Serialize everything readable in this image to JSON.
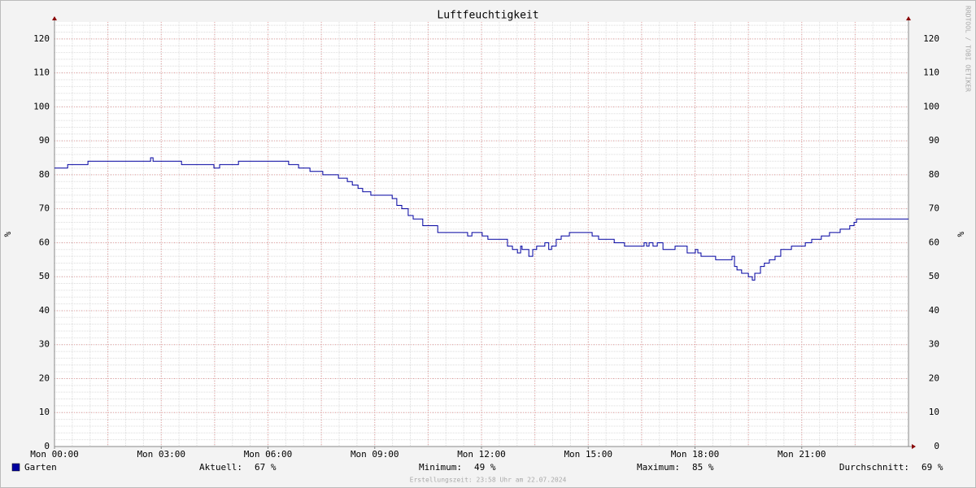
{
  "chart_data": {
    "type": "line",
    "step": "after",
    "title": "Luftfeuchtigkeit",
    "y_label": "%",
    "y2_label": "%",
    "watermark": "RRDTOOL / TOBI OETIKER",
    "x": [
      0,
      0.37,
      0.94,
      2.7,
      2.77,
      3.57,
      4.48,
      4.64,
      5.17,
      6.58,
      6.86,
      7.18,
      7.54,
      7.98,
      8.23,
      8.37,
      8.53,
      8.66,
      8.89,
      9.49,
      9.62,
      9.76,
      9.94,
      10.08,
      10.35,
      10.77,
      11.61,
      11.73,
      12.02,
      12.18,
      12.73,
      12.87,
      13.01,
      13.1,
      13.14,
      13.33,
      13.44,
      13.55,
      13.78,
      13.89,
      13.97,
      14.1,
      14.24,
      14.47,
      15.11,
      15.29,
      15.73,
      16.02,
      16.57,
      16.64,
      16.71,
      16.82,
      16.94,
      17.1,
      17.44,
      17.78,
      18.01,
      18.08,
      18.17,
      18.58,
      19.04,
      19.11,
      19.18,
      19.31,
      19.5,
      19.61,
      19.68,
      19.84,
      19.95,
      20.09,
      20.25,
      20.41,
      20.71,
      21.1,
      21.28,
      21.55,
      21.78,
      22.08,
      22.35,
      22.47,
      22.54,
      22.93,
      23.61,
      24
    ],
    "series": [
      {
        "name": "Garten",
        "color": "#0000a0",
        "values": [
          82,
          83,
          84,
          85,
          84,
          83,
          82,
          83,
          84,
          83,
          82,
          81,
          80,
          79,
          78,
          77,
          76,
          75,
          74,
          73,
          71,
          70,
          68,
          67,
          65,
          63,
          62,
          63,
          62,
          61,
          59,
          58,
          57,
          59,
          58,
          56,
          58,
          59,
          60,
          58,
          59,
          61,
          62,
          63,
          62,
          61,
          60,
          59,
          60,
          59,
          60,
          59,
          60,
          58,
          59,
          57,
          58,
          57,
          56,
          55,
          56,
          53,
          52,
          51,
          50,
          49,
          51,
          53,
          54,
          55,
          56,
          58,
          59,
          60,
          61,
          62,
          63,
          64,
          65,
          66,
          67,
          67,
          67,
          67
        ]
      }
    ],
    "xlim": [
      0,
      24
    ],
    "xticks": [
      {
        "value": 0,
        "label": "Mon 00:00"
      },
      {
        "value": 3,
        "label": "Mon 03:00"
      },
      {
        "value": 6,
        "label": "Mon 06:00"
      },
      {
        "value": 9,
        "label": "Mon 09:00"
      },
      {
        "value": 12,
        "label": "Mon 12:00"
      },
      {
        "value": 15,
        "label": "Mon 15:00"
      },
      {
        "value": 18,
        "label": "Mon 18:00"
      },
      {
        "value": 21,
        "label": "Mon 21:00"
      }
    ],
    "x_minor_step": 0.5,
    "x_major_step": 1.5,
    "ylim": [
      0,
      125
    ],
    "yticks": [
      0,
      10,
      20,
      30,
      40,
      50,
      60,
      70,
      80,
      90,
      100,
      110,
      120
    ],
    "y_minor_step": 2,
    "grid": true,
    "stats": [
      {
        "label": "Aktuell:",
        "text": "67 %"
      },
      {
        "label": "Minimum:",
        "text": "49 %"
      },
      {
        "label": "Maximum:",
        "text": "85 %"
      },
      {
        "label": "Durchschnitt:",
        "text": "69 %"
      }
    ],
    "footer": "Erstellungszeit: 23:58 Uhr am 22.07.2024"
  }
}
